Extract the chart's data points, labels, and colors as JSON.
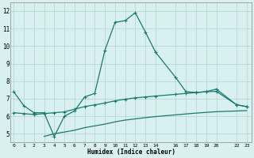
{
  "line1_x": [
    0,
    1,
    2,
    3,
    4,
    5,
    6,
    7,
    8,
    9,
    10,
    11,
    12,
    13,
    14,
    16,
    17,
    18,
    19,
    20,
    22,
    23
  ],
  "line1_y": [
    7.4,
    6.6,
    6.2,
    6.2,
    4.85,
    6.0,
    6.3,
    7.1,
    7.3,
    9.75,
    11.35,
    11.45,
    11.9,
    10.8,
    9.65,
    8.2,
    7.4,
    7.35,
    7.4,
    7.55,
    6.65,
    6.55
  ],
  "line2_x": [
    0,
    1,
    2,
    3,
    4,
    5,
    6,
    7,
    8,
    9,
    10,
    11,
    12,
    13,
    14,
    16,
    17,
    18,
    19,
    20,
    22,
    23
  ],
  "line2_y": [
    6.2,
    6.15,
    6.1,
    6.15,
    6.2,
    6.25,
    6.4,
    6.55,
    6.65,
    6.75,
    6.88,
    6.97,
    7.05,
    7.1,
    7.15,
    7.25,
    7.3,
    7.35,
    7.4,
    7.42,
    6.65,
    6.55
  ],
  "line3_x": [
    3,
    4,
    5,
    6,
    7,
    8,
    9,
    10,
    11,
    12,
    13,
    14,
    16,
    17,
    18,
    19,
    20,
    22,
    23
  ],
  "line3_y": [
    4.85,
    5.0,
    5.1,
    5.2,
    5.35,
    5.45,
    5.55,
    5.68,
    5.78,
    5.85,
    5.92,
    5.98,
    6.08,
    6.13,
    6.18,
    6.22,
    6.26,
    6.3,
    6.32
  ],
  "line_color": "#1a7a6e",
  "bg_color": "#d8f0f0",
  "grid_color": "#b8d8d8",
  "xlabel": "Humidex (Indice chaleur)",
  "xtick_positions": [
    0,
    1,
    2,
    3,
    4,
    5,
    6,
    7,
    8,
    9,
    10,
    11,
    12,
    13,
    14,
    16,
    17,
    18,
    19,
    20,
    22,
    23
  ],
  "xtick_labels": [
    "0",
    "1",
    "2",
    "3",
    "4",
    "5",
    "6",
    "7",
    "8",
    "9",
    "10",
    "11",
    "12",
    "13",
    "14",
    "16",
    "17",
    "18",
    "19",
    "20",
    "22",
    "23"
  ],
  "yticks": [
    5,
    6,
    7,
    8,
    9,
    10,
    11,
    12
  ],
  "xlim": [
    -0.3,
    23.5
  ],
  "ylim": [
    4.5,
    12.5
  ]
}
